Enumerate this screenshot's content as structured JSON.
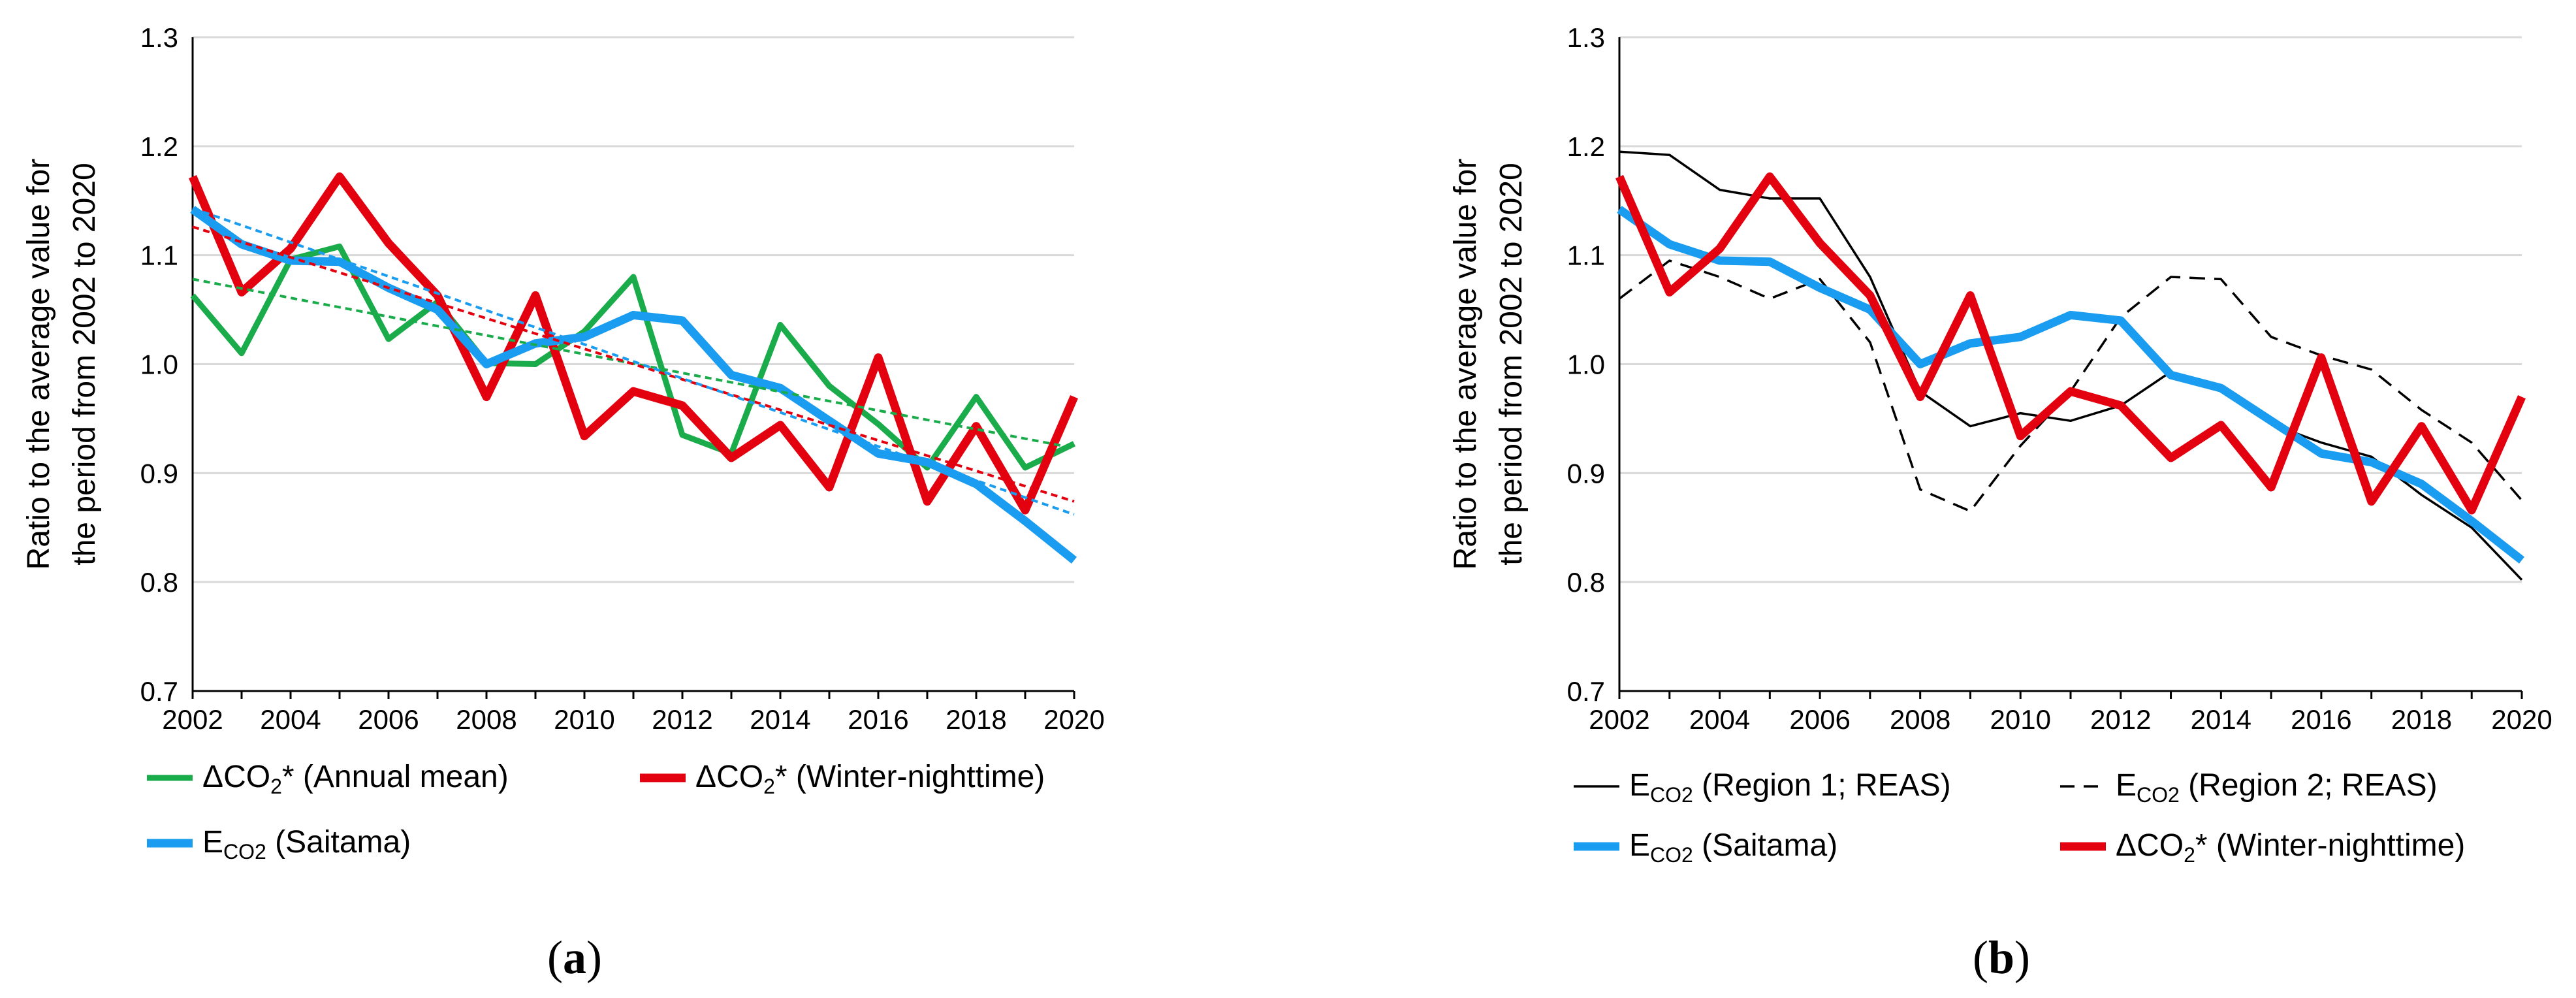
{
  "colors": {
    "green": "#1aab4b",
    "red": "#e3000f",
    "blue": "#1a9cf0",
    "black": "#000000",
    "grid": "#d9d9d9"
  },
  "chart_data": [
    {
      "type": "line",
      "panel_label": "a",
      "ylabel_line1": "Ratio to the average value for",
      "ylabel_line2": "the period from 2002 to 2020",
      "xlim": [
        2002,
        2020
      ],
      "ylim": [
        0.7,
        1.3
      ],
      "x_ticks": [
        "2002",
        "2004",
        "2006",
        "2008",
        "2010",
        "2012",
        "2014",
        "2016",
        "2018",
        "2020"
      ],
      "y_ticks": [
        "0.7",
        "0.8",
        "0.9",
        "1.0",
        "1.1",
        "1.2",
        "1.3"
      ],
      "gridlines": true,
      "x": [
        2002,
        2003,
        2004,
        2005,
        2006,
        2007,
        2008,
        2009,
        2010,
        2011,
        2012,
        2013,
        2014,
        2015,
        2016,
        2017,
        2018,
        2019,
        2020
      ],
      "series": [
        {
          "name": "ΔCO2* (Annual mean)",
          "legend_main": "ΔCO",
          "legend_sub": "2",
          "legend_rest": "* (Annual mean)",
          "color": "green",
          "width": "medium",
          "dash": "solid",
          "values": [
            1.063,
            1.01,
            1.096,
            1.108,
            1.023,
            1.057,
            1.001,
            1.0,
            1.03,
            1.08,
            0.935,
            0.918,
            1.036,
            0.98,
            0.945,
            0.905,
            0.97,
            0.905,
            0.927
          ]
        },
        {
          "name": "ΔCO2* (Winter-nighttime)",
          "legend_main": "ΔCO",
          "legend_sub": "2",
          "legend_rest": "* (Winter-nighttime)",
          "color": "red",
          "width": "thick",
          "dash": "solid",
          "values": [
            1.172,
            1.066,
            1.106,
            1.172,
            1.111,
            1.063,
            0.97,
            1.063,
            0.934,
            0.975,
            0.962,
            0.914,
            0.944,
            0.887,
            1.006,
            0.874,
            0.943,
            0.866,
            0.97
          ]
        },
        {
          "name": "ECO2 (Saitama)",
          "legend_main": "E",
          "legend_sub": "CO2",
          "legend_rest": " (Saitama)",
          "color": "blue",
          "width": "thick",
          "dash": "solid",
          "values": [
            1.142,
            1.11,
            1.095,
            1.094,
            1.07,
            1.05,
            1.0,
            1.019,
            1.025,
            1.045,
            1.04,
            0.99,
            0.978,
            0.948,
            0.918,
            0.91,
            0.89,
            0.856,
            0.82
          ]
        }
      ],
      "trendlines": [
        {
          "color": "green",
          "x": [
            2002,
            2020
          ],
          "values": [
            1.078,
            0.923
          ]
        },
        {
          "color": "red",
          "x": [
            2002,
            2020
          ],
          "values": [
            1.126,
            0.874
          ]
        },
        {
          "color": "blue",
          "x": [
            2002,
            2020
          ],
          "values": [
            1.143,
            0.862
          ]
        }
      ],
      "legend_layout": [
        [
          "ΔCO2* (Annual mean)",
          "ΔCO2* (Winter-nighttime)"
        ],
        [
          "ECO2 (Saitama)"
        ]
      ]
    },
    {
      "type": "line",
      "panel_label": "b",
      "ylabel_line1": "Ratio to the average value for",
      "ylabel_line2": "the period from 2002 to 2020",
      "xlim": [
        2002,
        2020
      ],
      "ylim": [
        0.7,
        1.3
      ],
      "x_ticks": [
        "2002",
        "2004",
        "2006",
        "2008",
        "2010",
        "2012",
        "2014",
        "2016",
        "2018",
        "2020"
      ],
      "y_ticks": [
        "0.7",
        "0.8",
        "0.9",
        "1.0",
        "1.1",
        "1.2",
        "1.3"
      ],
      "gridlines": true,
      "x": [
        2002,
        2003,
        2004,
        2005,
        2006,
        2007,
        2008,
        2009,
        2010,
        2011,
        2012,
        2013,
        2014,
        2015,
        2016,
        2017,
        2018,
        2019,
        2020
      ],
      "series": [
        {
          "name": "ECO2 (Region 1; REAS)",
          "legend_main": "E",
          "legend_sub": "CO2",
          "legend_rest": " (Region 1; REAS)",
          "color": "black",
          "width": "thin",
          "dash": "solid",
          "values": [
            1.195,
            1.192,
            1.16,
            1.152,
            1.152,
            1.08,
            0.975,
            0.943,
            0.955,
            0.948,
            0.962,
            0.993,
            0.978,
            0.945,
            0.928,
            0.915,
            0.88,
            0.85,
            0.802
          ]
        },
        {
          "name": "ECO2 (Region 2; REAS)",
          "legend_main": "E",
          "legend_sub": "CO2",
          "legend_rest": " (Region 2; REAS)",
          "color": "black",
          "width": "thin",
          "dash": "dashed",
          "values": [
            1.06,
            1.095,
            1.08,
            1.06,
            1.078,
            1.02,
            0.885,
            0.865,
            0.925,
            0.975,
            1.043,
            1.08,
            1.078,
            1.025,
            1.008,
            0.995,
            0.958,
            0.928,
            0.875
          ]
        },
        {
          "name": "ECO2 (Saitama)",
          "legend_main": "E",
          "legend_sub": "CO2",
          "legend_rest": " (Saitama)",
          "color": "blue",
          "width": "thick",
          "dash": "solid",
          "values": [
            1.142,
            1.11,
            1.095,
            1.094,
            1.07,
            1.05,
            1.0,
            1.019,
            1.025,
            1.045,
            1.04,
            0.99,
            0.978,
            0.948,
            0.918,
            0.91,
            0.89,
            0.856,
            0.82
          ]
        },
        {
          "name": "ΔCO2* (Winter-nighttime)",
          "legend_main": "ΔCO",
          "legend_sub": "2",
          "legend_rest": "* (Winter-nighttime)",
          "color": "red",
          "width": "thick",
          "dash": "solid",
          "values": [
            1.172,
            1.066,
            1.106,
            1.172,
            1.111,
            1.063,
            0.97,
            1.063,
            0.934,
            0.975,
            0.962,
            0.914,
            0.944,
            0.887,
            1.006,
            0.874,
            0.943,
            0.866,
            0.97
          ]
        }
      ],
      "trendlines": [],
      "legend_layout": [
        [
          "ECO2 (Region 1; REAS)",
          "ECO2 (Region 2; REAS)"
        ],
        [
          "ECO2 (Saitama)",
          "ΔCO2* (Winter-nighttime)"
        ]
      ]
    }
  ]
}
